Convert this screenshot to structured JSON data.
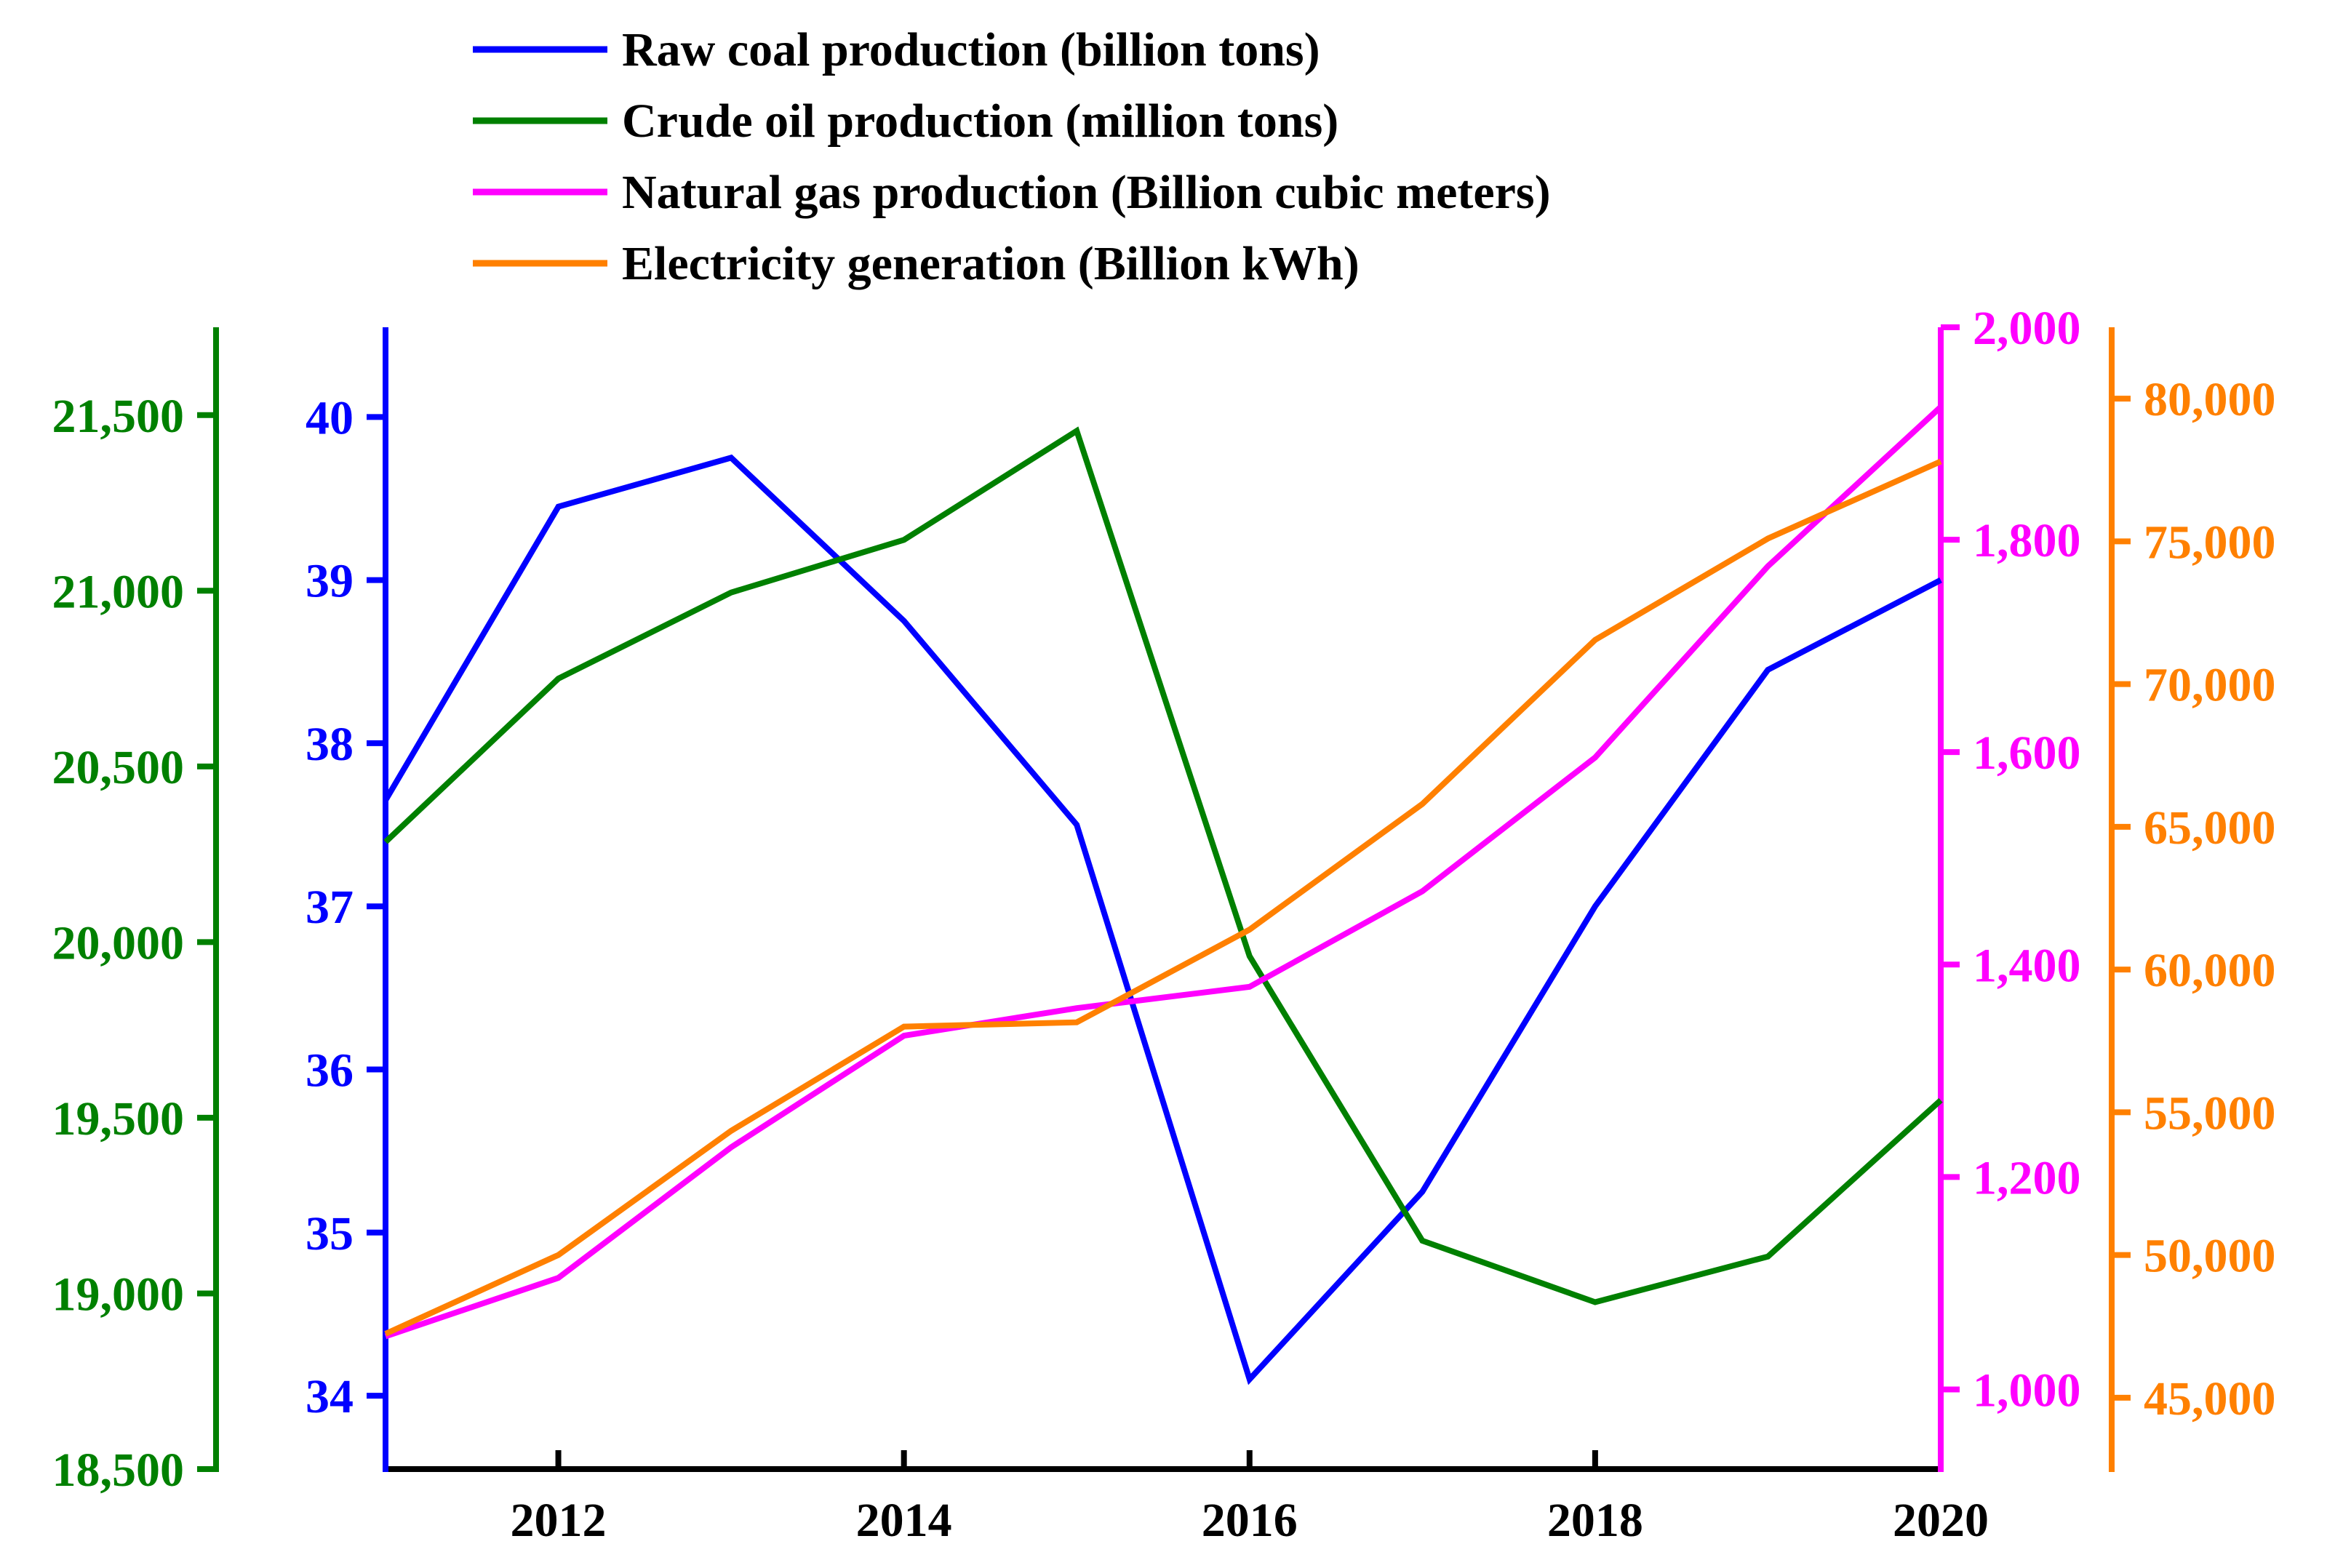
{
  "chart_data": {
    "type": "line",
    "x": [
      2011,
      2012,
      2013,
      2014,
      2015,
      2016,
      2017,
      2018,
      2019,
      2020
    ],
    "x_ticks": [
      "2012",
      "2014",
      "2016",
      "2018",
      "2020"
    ],
    "legend_position": "top-center",
    "grid": false,
    "axes": {
      "left_outer": {
        "color": "#008000",
        "range": [
          18500,
          21750
        ],
        "ticks": [
          18500,
          19000,
          19500,
          20000,
          20500,
          21000,
          21500
        ],
        "tick_labels": [
          "18,500",
          "19,000",
          "19,500",
          "20,000",
          "20,500",
          "21,000",
          "21,500"
        ]
      },
      "left_inner": {
        "color": "#0000ff",
        "range": [
          33.55,
          40.55
        ],
        "ticks": [
          34,
          35,
          36,
          37,
          38,
          39,
          40
        ],
        "tick_labels": [
          "34",
          "35",
          "36",
          "37",
          "38",
          "39",
          "40"
        ]
      },
      "right_inner": {
        "color": "#ff00ff",
        "range": [
          925,
          2000
        ],
        "ticks": [
          1000,
          1200,
          1400,
          1600,
          1800,
          2000
        ],
        "tick_labels": [
          "1,000",
          "1,200",
          "1,400",
          "1,600",
          "1,800",
          "2,000"
        ]
      },
      "right_outer": {
        "color": "#ff8000",
        "range": [
          42500,
          82500
        ],
        "ticks": [
          45000,
          50000,
          55000,
          60000,
          65000,
          70000,
          75000,
          80000
        ],
        "tick_labels": [
          "45,000",
          "50,000",
          "55,000",
          "60,000",
          "65,000",
          "70,000",
          "75,000",
          "80,000"
        ]
      }
    },
    "series": [
      {
        "name": "Raw coal production (billion tons)",
        "axis": "left_inner",
        "color": "#0000ff",
        "values": [
          37.65,
          39.45,
          39.75,
          38.75,
          37.5,
          34.1,
          35.25,
          37.0,
          38.45,
          39.0
        ]
      },
      {
        "name": "Crude oil production (million tons)",
        "axis": "left_outer",
        "color": "#008000",
        "values": [
          20285,
          20750,
          20995,
          21145,
          21455,
          19960,
          19150,
          18975,
          19105,
          19550
        ]
      },
      {
        "name": "Natural gas production (Billion cubic meters)",
        "axis": "right_inner",
        "color": "#ff00ff",
        "values": [
          1050,
          1105,
          1228,
          1333,
          1359,
          1379,
          1469,
          1595,
          1775,
          1925
        ]
      },
      {
        "name": "Electricity generation (Billion kWh)",
        "axis": "right_outer",
        "color": "#ff8000",
        "values": [
          47240,
          50000,
          54350,
          58000,
          58150,
          61400,
          65800,
          71550,
          75100,
          77800
        ]
      }
    ]
  }
}
